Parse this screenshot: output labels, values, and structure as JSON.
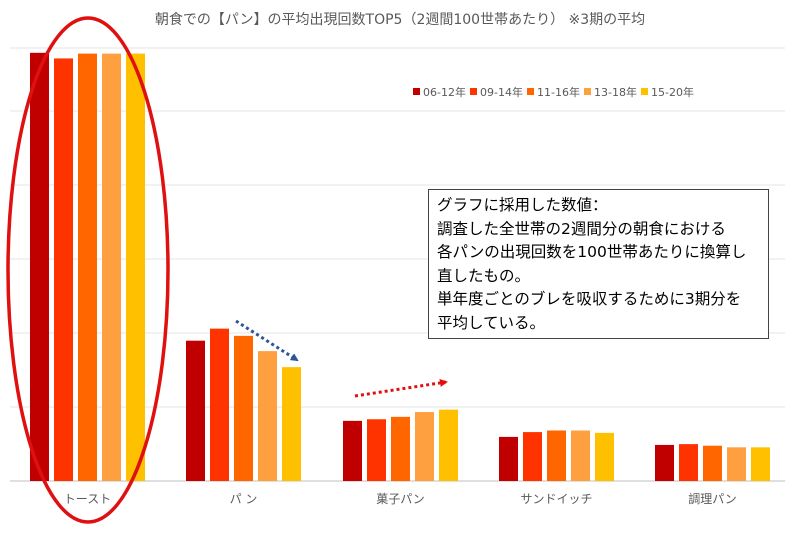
{
  "chart_data": {
    "type": "bar",
    "title": "朝食での【パン】の平均出現回数TOP5（2週間100世帯あたり） ※3期の平均",
    "categories": [
      "トースト",
      "パ ン",
      "菓子パン",
      "サンドイッチ",
      "調理パン"
    ],
    "ylim": [
      0,
      540
    ],
    "grid": true,
    "legend_position": "top-right",
    "series": [
      {
        "name": "06-12年",
        "color": "#c00000",
        "values": [
          534,
          175,
          75,
          55,
          45
        ]
      },
      {
        "name": "09-14年",
        "color": "#ff3300",
        "values": [
          527,
          190,
          77,
          61,
          46
        ]
      },
      {
        "name": "11-16年",
        "color": "#ff6600",
        "values": [
          533,
          181,
          80,
          63,
          44
        ]
      },
      {
        "name": "13-18年",
        "color": "#ffa040",
        "values": [
          533,
          162,
          86,
          63,
          42
        ]
      },
      {
        "name": "15-20年",
        "color": "#ffc000",
        "values": [
          533,
          142,
          89,
          60,
          42
        ]
      }
    ],
    "annotations": {
      "note_lines": [
        "グラフに採用した数値：",
        "調査した全世帯の2週間分の朝食における",
        "各パンの出現回数を100世帯あたりに換算し",
        "直したもの。",
        "単年度ごとのブレを吸収するために3期分を",
        "平均している。"
      ],
      "arrow_down_color": "#2e5597",
      "arrow_up_color": "#e01010",
      "ellipse_color": "#e01010"
    }
  }
}
